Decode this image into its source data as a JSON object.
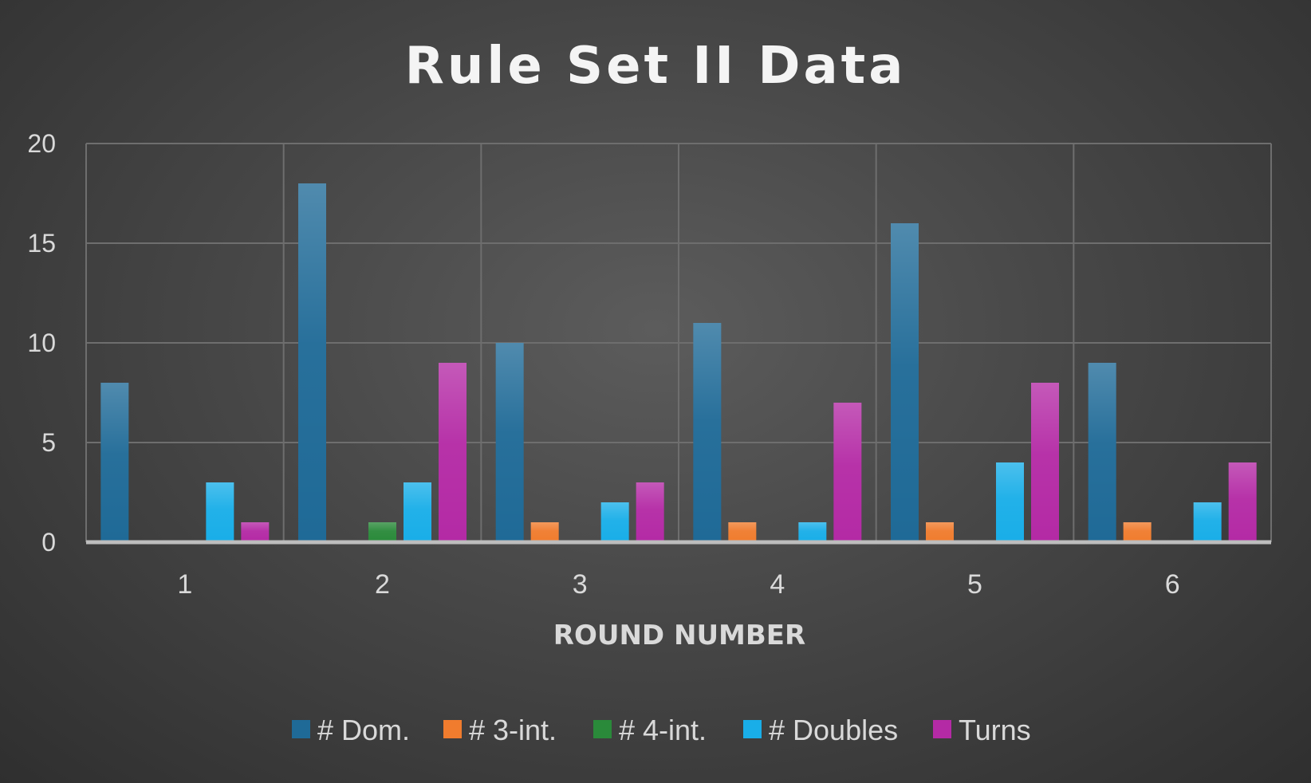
{
  "chart_data": {
    "type": "bar",
    "title": "Rule Set II Data",
    "xlabel": "ROUND NUMBER",
    "ylabel": "",
    "categories": [
      "1",
      "2",
      "3",
      "4",
      "5",
      "6"
    ],
    "ylim": [
      0,
      20
    ],
    "yticks": [
      "0",
      "5",
      "10",
      "15",
      "20"
    ],
    "grid": true,
    "legend_position": "bottom",
    "series": [
      {
        "name": "# Dom.",
        "color": "#1f6a97",
        "values": [
          8,
          18,
          10,
          11,
          16,
          9
        ]
      },
      {
        "name": "# 3-int.",
        "color": "#f07c2e",
        "values": [
          0,
          0,
          1,
          1,
          1,
          1
        ]
      },
      {
        "name": "# 4-int.",
        "color": "#2a8a3a",
        "values": [
          0,
          1,
          0,
          0,
          0,
          0
        ]
      },
      {
        "name": "# Doubles",
        "color": "#19aee8",
        "values": [
          3,
          3,
          2,
          1,
          4,
          2
        ]
      },
      {
        "name": "Turns",
        "color": "#b42aa5",
        "values": [
          1,
          9,
          3,
          7,
          8,
          4
        ]
      }
    ]
  }
}
